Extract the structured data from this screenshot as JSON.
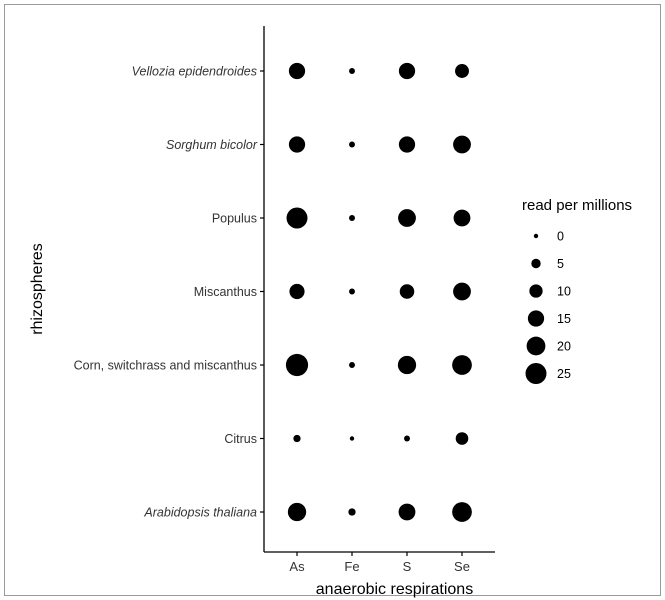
{
  "chart_data": {
    "type": "scatter",
    "subtype": "bubble",
    "xlabel": "anaerobic respirations",
    "ylabel": "rhizospheres",
    "x_categories": [
      "As",
      "Fe",
      "S",
      "Se"
    ],
    "y_categories": [
      {
        "label": "Vellozia epidendroides",
        "italic": true
      },
      {
        "label": "Sorghum bicolor",
        "italic": true
      },
      {
        "label": "Populus",
        "italic": false
      },
      {
        "label": "Miscanthus",
        "italic": false
      },
      {
        "label": "Corn, switchrass and miscanthus",
        "italic": false
      },
      {
        "label": "Citrus",
        "italic": false
      },
      {
        "label": "Arabidopsis thaliana",
        "italic": true
      }
    ],
    "points": [
      {
        "x": "As",
        "y": "Vellozia epidendroides",
        "value": 15
      },
      {
        "x": "Fe",
        "y": "Vellozia epidendroides",
        "value": 2
      },
      {
        "x": "S",
        "y": "Vellozia epidendroides",
        "value": 15
      },
      {
        "x": "Se",
        "y": "Vellozia epidendroides",
        "value": 11
      },
      {
        "x": "As",
        "y": "Sorghum bicolor",
        "value": 15
      },
      {
        "x": "Fe",
        "y": "Sorghum bicolor",
        "value": 2
      },
      {
        "x": "S",
        "y": "Sorghum bicolor",
        "value": 15
      },
      {
        "x": "Se",
        "y": "Sorghum bicolor",
        "value": 18
      },
      {
        "x": "As",
        "y": "Populus",
        "value": 25
      },
      {
        "x": "Fe",
        "y": "Populus",
        "value": 2
      },
      {
        "x": "S",
        "y": "Populus",
        "value": 18
      },
      {
        "x": "Se",
        "y": "Populus",
        "value": 16
      },
      {
        "x": "As",
        "y": "Miscanthus",
        "value": 13
      },
      {
        "x": "Fe",
        "y": "Miscanthus",
        "value": 2
      },
      {
        "x": "S",
        "y": "Miscanthus",
        "value": 12
      },
      {
        "x": "Se",
        "y": "Miscanthus",
        "value": 18
      },
      {
        "x": "As",
        "y": "Corn, switchrass and miscanthus",
        "value": 28
      },
      {
        "x": "Fe",
        "y": "Corn, switchrass and miscanthus",
        "value": 2
      },
      {
        "x": "S",
        "y": "Corn, switchrass and miscanthus",
        "value": 19
      },
      {
        "x": "Se",
        "y": "Corn, switchrass and miscanthus",
        "value": 22
      },
      {
        "x": "As",
        "y": "Citrus",
        "value": 3
      },
      {
        "x": "Fe",
        "y": "Citrus",
        "value": 1
      },
      {
        "x": "S",
        "y": "Citrus",
        "value": 2
      },
      {
        "x": "Se",
        "y": "Citrus",
        "value": 9
      },
      {
        "x": "As",
        "y": "Arabidopsis thaliana",
        "value": 19
      },
      {
        "x": "Fe",
        "y": "Arabidopsis thaliana",
        "value": 3
      },
      {
        "x": "S",
        "y": "Arabidopsis thaliana",
        "value": 16
      },
      {
        "x": "Se",
        "y": "Arabidopsis thaliana",
        "value": 22
      }
    ],
    "size_legend": {
      "title": "read per millions",
      "values": [
        0,
        5,
        10,
        15,
        20,
        25
      ],
      "placement": "right"
    },
    "grid": false,
    "marker_color": "#000000"
  }
}
